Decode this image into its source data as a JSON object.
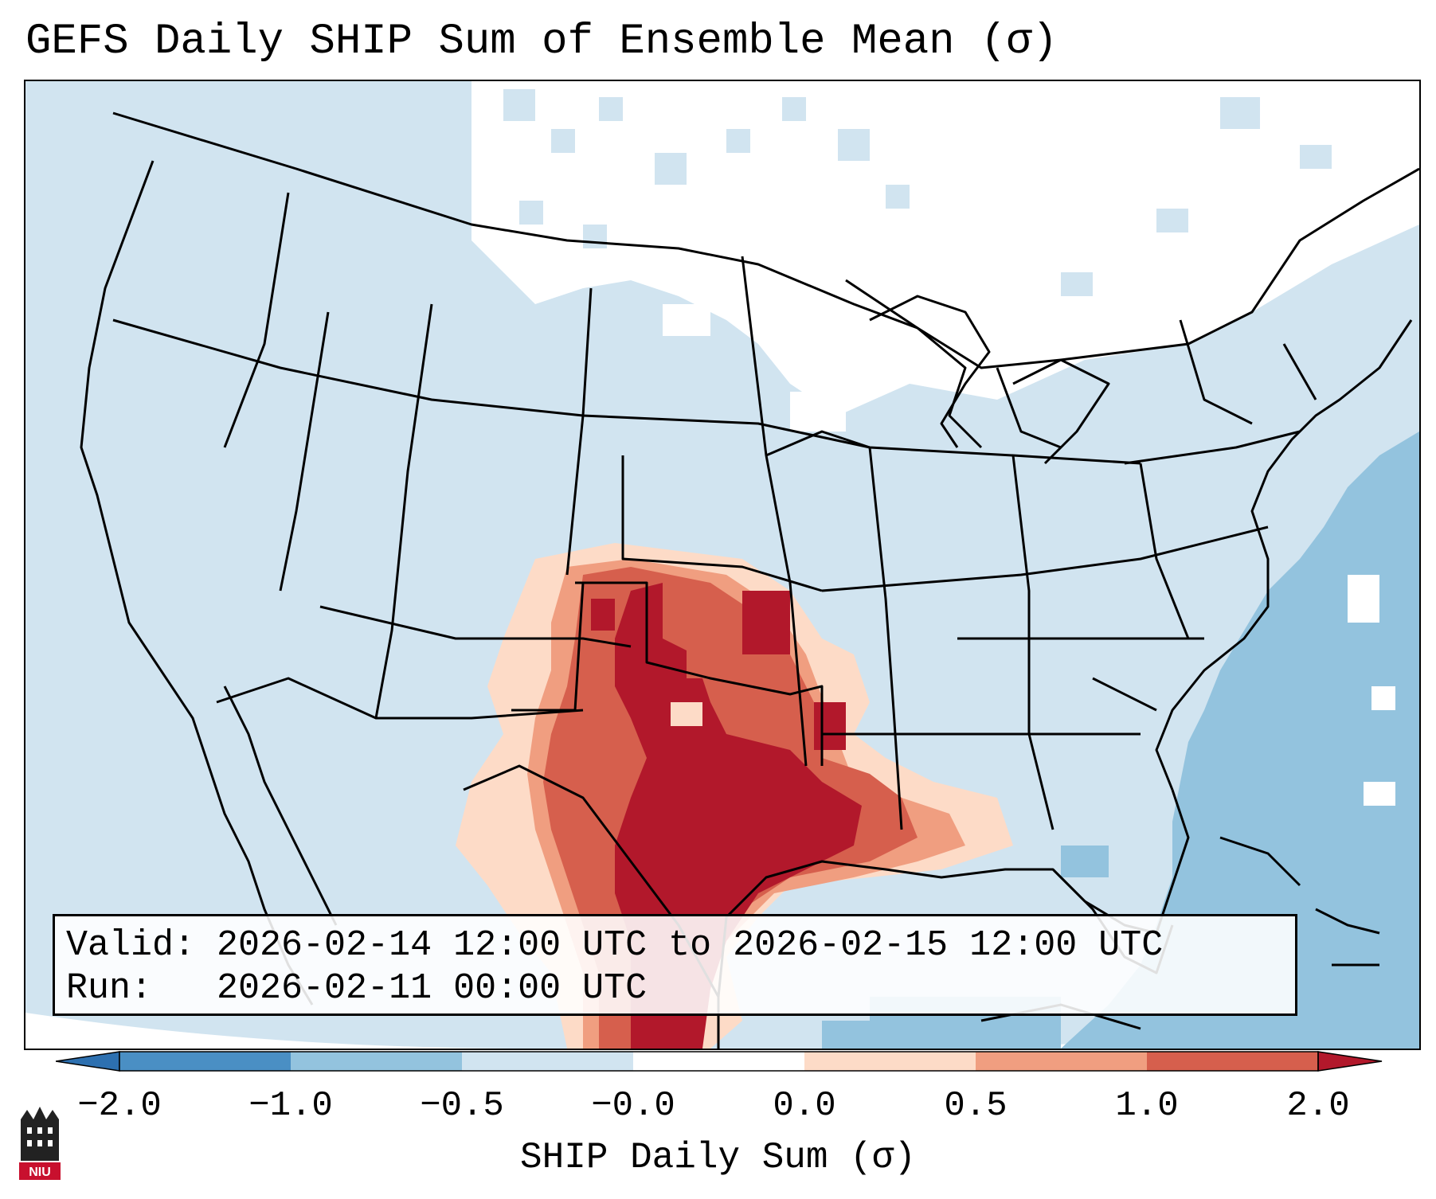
{
  "title": "GEFS Daily SHIP Sum of Ensemble Mean (σ)",
  "info": {
    "valid": "Valid: 2026-02-14 12:00 UTC to 2026-02-15 12:00 UTC",
    "run": "Run:   2026-02-11 00:00 UTC"
  },
  "colorbar": {
    "label": "SHIP Daily Sum (σ)",
    "ticks": [
      "−2.0",
      "−1.0",
      "−0.5",
      "−0.0",
      "0.0",
      "0.5",
      "1.0",
      "2.0"
    ],
    "colors": [
      "#4a8fc4",
      "#93c3de",
      "#d1e4f0",
      "#ffffff",
      "#fddbc7",
      "#f09e80",
      "#d65f4d",
      "#b2182b"
    ]
  },
  "map": {
    "field": "SHIP daily sum anomaly (sigma)",
    "region": "CONUS",
    "max_anomaly_region": "Texas / Oklahoma / Gulf Coast"
  },
  "logo": {
    "text": "NIU"
  }
}
